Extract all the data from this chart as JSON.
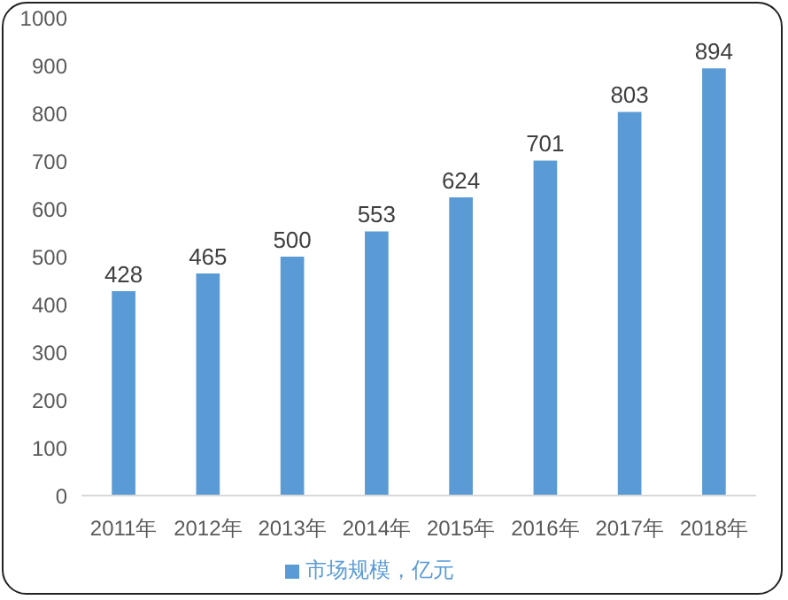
{
  "chart_data": {
    "type": "bar",
    "categories": [
      "2011年",
      "2012年",
      "2013年",
      "2014年",
      "2015年",
      "2016年",
      "2017年",
      "2018年"
    ],
    "series": [
      {
        "name": "市场规模，亿元",
        "color": "#5b9bd5",
        "values": [
          428,
          465,
          500,
          553,
          624,
          701,
          803,
          894
        ]
      }
    ],
    "ylim": [
      0,
      1000
    ],
    "yticks": [
      0,
      100,
      200,
      300,
      400,
      500,
      600,
      700,
      800,
      900,
      1000
    ],
    "grid": false,
    "legend": "bottom",
    "data_labels": true
  }
}
